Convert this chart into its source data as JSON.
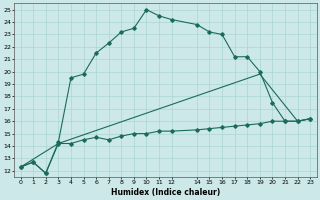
{
  "xlabel": "Humidex (Indice chaleur)",
  "bg_color": "#cce8e8",
  "grid_color": "#aad4d4",
  "line_color": "#1a6b5a",
  "xlim": [
    -0.5,
    23.5
  ],
  "ylim": [
    11.5,
    25.5
  ],
  "xticks": [
    0,
    1,
    2,
    3,
    4,
    5,
    6,
    7,
    8,
    9,
    10,
    11,
    12,
    14,
    15,
    16,
    17,
    18,
    19,
    20,
    21,
    22,
    23
  ],
  "yticks": [
    12,
    13,
    14,
    15,
    16,
    17,
    18,
    19,
    20,
    21,
    22,
    23,
    24,
    25
  ],
  "line1": {
    "x": [
      0,
      1,
      2,
      3,
      4,
      5,
      6,
      7,
      8,
      9,
      10,
      11,
      12,
      14,
      15,
      16,
      17,
      18,
      19,
      20,
      21,
      22,
      23
    ],
    "y": [
      12.3,
      12.7,
      11.8,
      14.3,
      19.5,
      19.8,
      21.5,
      22.3,
      23.2,
      23.5,
      25.0,
      24.5,
      24.2,
      23.8,
      23.2,
      23.0,
      21.2,
      21.2,
      20.0,
      17.5,
      16.0,
      16.0,
      16.2
    ]
  },
  "line2": {
    "x": [
      0,
      1,
      2,
      3,
      4,
      5,
      6,
      7,
      8,
      9,
      10,
      11,
      12,
      14,
      15,
      16,
      17,
      18,
      19,
      20,
      21,
      22,
      23
    ],
    "y": [
      12.3,
      12.7,
      11.8,
      14.2,
      14.2,
      14.5,
      14.7,
      14.5,
      14.8,
      15.0,
      15.0,
      15.2,
      15.2,
      15.3,
      15.4,
      15.5,
      15.6,
      15.7,
      15.8,
      16.0,
      16.0,
      16.0,
      16.2
    ]
  },
  "line3": {
    "x": [
      0,
      3,
      19,
      22,
      23
    ],
    "y": [
      12.3,
      14.2,
      19.8,
      16.0,
      16.2
    ]
  }
}
